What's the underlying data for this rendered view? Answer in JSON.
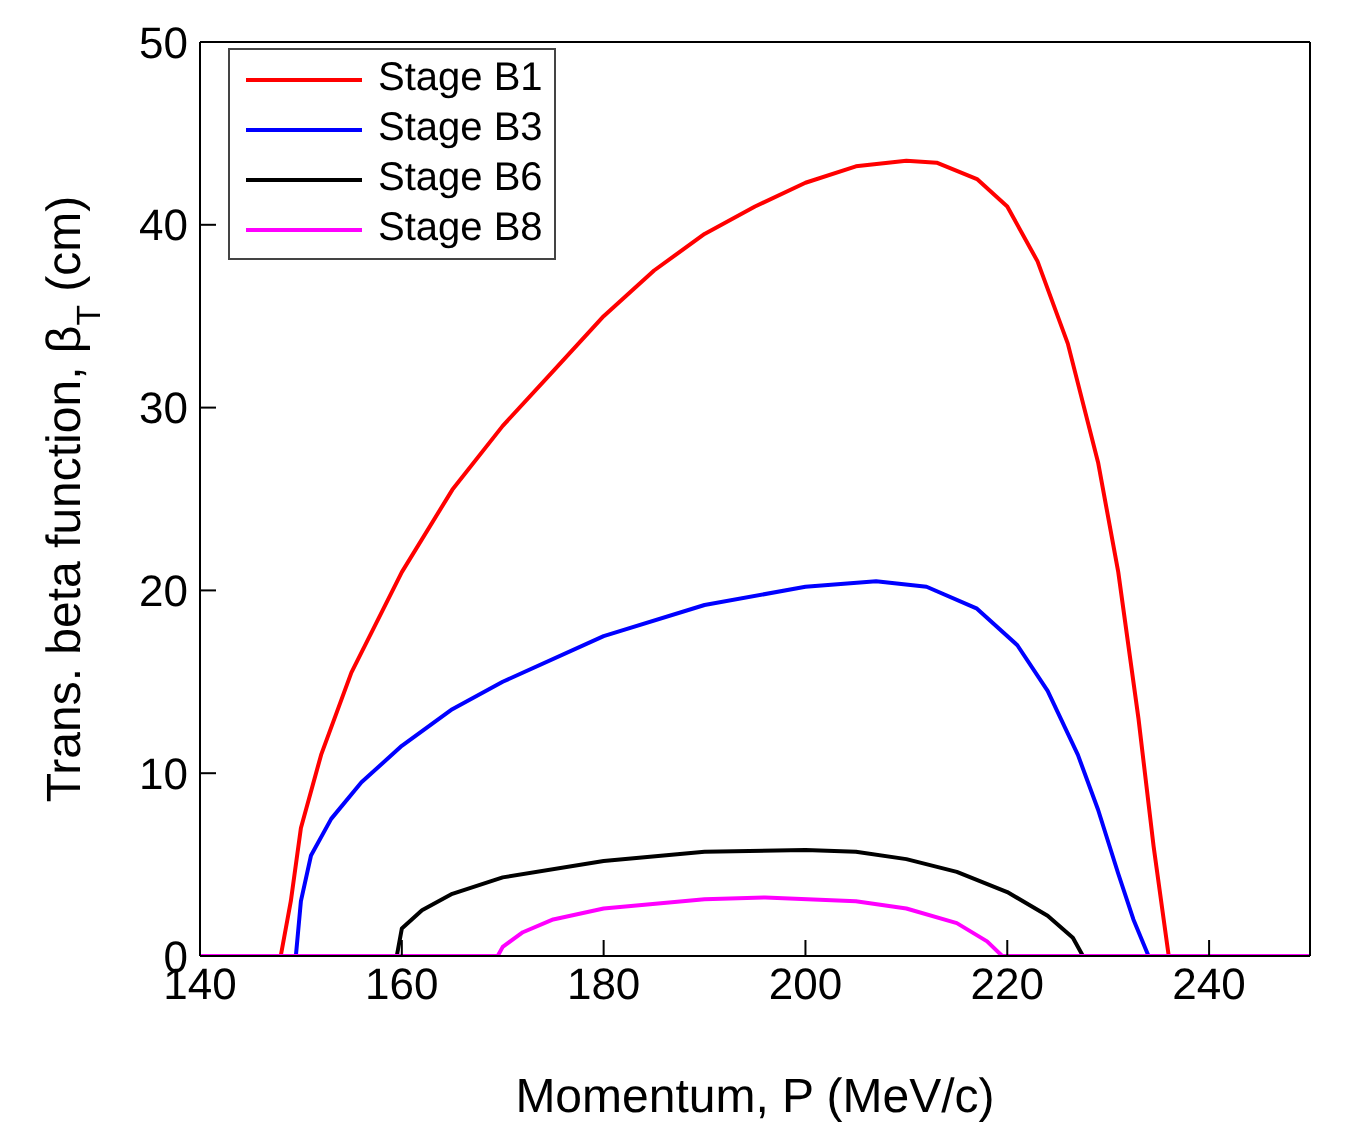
{
  "chart_data": {
    "type": "line",
    "xlabel": "Momentum, P (MeV/c)",
    "ylabel": "Trans. beta function, β$_{T}$ (cm)",
    "xlim": [
      140,
      250
    ],
    "xticks": [
      140,
      160,
      180,
      200,
      220,
      240
    ],
    "ylim": [
      0,
      50
    ],
    "yticks": [
      0,
      10,
      20,
      30,
      40,
      50
    ],
    "grid": false,
    "legend": "top left",
    "marker": "none",
    "line_style": "solid",
    "series": [
      {
        "name": "Stage B1",
        "color": "#ff0000",
        "x": [
          140,
          148,
          149,
          150,
          152,
          155,
          160,
          165,
          170,
          175,
          180,
          185,
          190,
          195,
          200,
          205,
          210,
          213,
          217,
          220,
          223,
          226,
          229,
          231,
          233,
          234.5,
          235.5,
          236,
          250
        ],
        "values": [
          0,
          0,
          3,
          7,
          11,
          15.5,
          21,
          25.5,
          29,
          32,
          35,
          37.5,
          39.5,
          41,
          42.3,
          43.2,
          43.5,
          43.4,
          42.5,
          41,
          38,
          33.5,
          27,
          21,
          13,
          6,
          2,
          0,
          0
        ]
      },
      {
        "name": "Stage B3",
        "color": "#0000ff",
        "x": [
          140,
          149.5,
          150,
          151,
          153,
          156,
          160,
          165,
          170,
          180,
          190,
          200,
          207,
          212,
          217,
          221,
          224,
          227,
          229,
          231,
          232.5,
          234,
          250
        ],
        "values": [
          0,
          0,
          3,
          5.5,
          7.5,
          9.5,
          11.5,
          13.5,
          15,
          17.5,
          19.2,
          20.2,
          20.5,
          20.2,
          19,
          17,
          14.5,
          11,
          8,
          4.5,
          2,
          0,
          0
        ]
      },
      {
        "name": "Stage B6",
        "color": "#000000",
        "x": [
          140,
          159.5,
          160,
          162,
          165,
          170,
          180,
          190,
          200,
          205,
          210,
          215,
          220,
          224,
          226.5,
          227.5,
          250
        ],
        "values": [
          0,
          0,
          1.5,
          2.5,
          3.4,
          4.3,
          5.2,
          5.7,
          5.8,
          5.7,
          5.3,
          4.6,
          3.5,
          2.2,
          1,
          0,
          0
        ]
      },
      {
        "name": "Stage B8",
        "color": "#ff00ff",
        "x": [
          140,
          169.5,
          170,
          172,
          175,
          180,
          190,
          196,
          205,
          210,
          215,
          218,
          219.5,
          250
        ],
        "values": [
          0,
          0,
          0.5,
          1.3,
          2,
          2.6,
          3.1,
          3.2,
          3,
          2.6,
          1.8,
          0.8,
          0,
          0
        ]
      }
    ]
  }
}
